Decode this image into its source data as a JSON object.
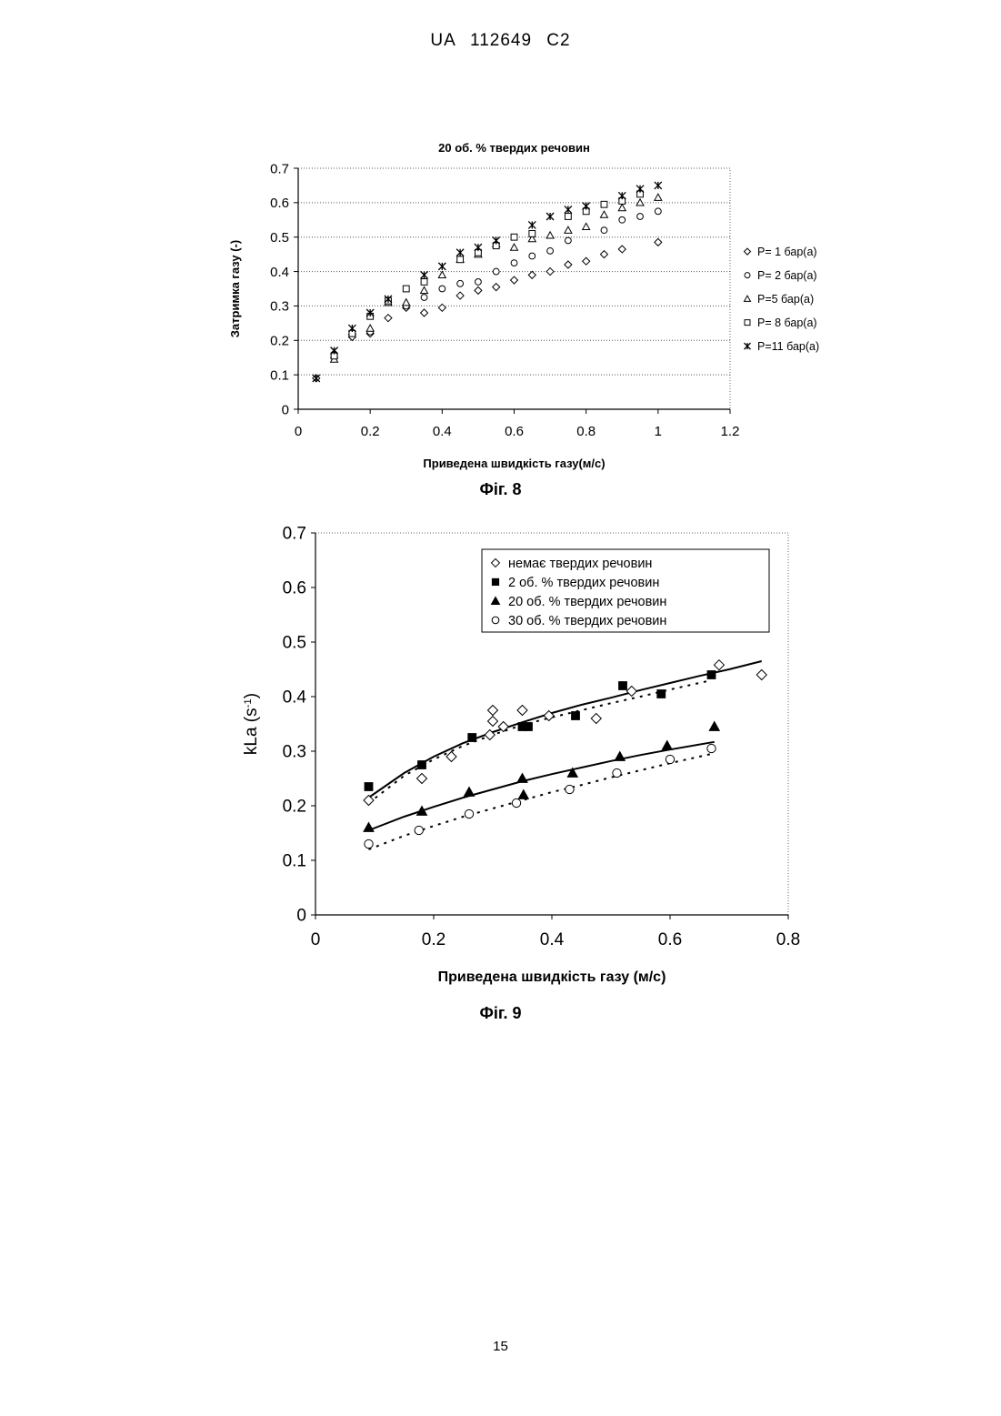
{
  "header": {
    "text": "UA   112649   C2"
  },
  "page_number": "15",
  "chart_data": [
    {
      "type": "scatter",
      "caption": "Фіг. 8",
      "title": "20 об. % твердих речовин",
      "xlabel": "Приведена швидкість газу(м/с)",
      "ylabel": "Затримка газу (-)",
      "xlim": [
        0,
        1.2
      ],
      "ylim": [
        0,
        0.7
      ],
      "xticks": [
        "0",
        "0.2",
        "0.4",
        "0.6",
        "0.8",
        "1",
        "1.2"
      ],
      "yticks": [
        "0",
        "0.1",
        "0.2",
        "0.3",
        "0.4",
        "0.5",
        "0.6",
        "0.7"
      ],
      "grid": "horizontal dotted",
      "legend_position": "right",
      "series": [
        {
          "name": "P= 1 бар(а)",
          "marker": "diamond-open",
          "x": [
            0.05,
            0.1,
            0.15,
            0.2,
            0.25,
            0.3,
            0.35,
            0.4,
            0.45,
            0.5,
            0.55,
            0.6,
            0.65,
            0.7,
            0.75,
            0.8,
            0.85,
            0.9,
            1.0
          ],
          "y": [
            0.09,
            0.15,
            0.21,
            0.22,
            0.265,
            0.295,
            0.28,
            0.295,
            0.33,
            0.345,
            0.355,
            0.375,
            0.39,
            0.4,
            0.42,
            0.43,
            0.45,
            0.465,
            0.485
          ]
        },
        {
          "name": "P= 2 бар(а)",
          "marker": "circle-open",
          "x": [
            0.1,
            0.15,
            0.2,
            0.25,
            0.3,
            0.35,
            0.4,
            0.45,
            0.5,
            0.55,
            0.6,
            0.65,
            0.7,
            0.75,
            0.85,
            0.9,
            0.95,
            1.0
          ],
          "y": [
            0.16,
            0.22,
            0.225,
            0.315,
            0.3,
            0.325,
            0.35,
            0.365,
            0.37,
            0.4,
            0.425,
            0.445,
            0.46,
            0.49,
            0.52,
            0.55,
            0.56,
            0.575
          ]
        },
        {
          "name": "P=5 бар(а)",
          "marker": "triangle-open",
          "x": [
            0.1,
            0.15,
            0.2,
            0.25,
            0.3,
            0.35,
            0.4,
            0.45,
            0.5,
            0.55,
            0.6,
            0.65,
            0.7,
            0.75,
            0.8,
            0.85,
            0.9,
            0.95,
            1.0
          ],
          "y": [
            0.145,
            0.225,
            0.235,
            0.31,
            0.31,
            0.345,
            0.39,
            0.435,
            0.45,
            0.48,
            0.47,
            0.495,
            0.505,
            0.52,
            0.53,
            0.565,
            0.585,
            0.6,
            0.615
          ]
        },
        {
          "name": "P= 8 бар(а)",
          "marker": "square-open",
          "x": [
            0.1,
            0.15,
            0.2,
            0.25,
            0.3,
            0.35,
            0.45,
            0.5,
            0.55,
            0.6,
            0.65,
            0.75,
            0.8,
            0.85,
            0.9,
            0.95
          ],
          "y": [
            0.155,
            0.22,
            0.27,
            0.315,
            0.35,
            0.37,
            0.435,
            0.455,
            0.475,
            0.5,
            0.51,
            0.56,
            0.575,
            0.595,
            0.605,
            0.625
          ]
        },
        {
          "name": "P=11 бар(а)",
          "marker": "star",
          "x": [
            0.05,
            0.1,
            0.15,
            0.2,
            0.25,
            0.35,
            0.4,
            0.45,
            0.5,
            0.55,
            0.65,
            0.7,
            0.75,
            0.8,
            0.9,
            0.95,
            1.0
          ],
          "y": [
            0.09,
            0.17,
            0.235,
            0.28,
            0.32,
            0.39,
            0.415,
            0.455,
            0.47,
            0.49,
            0.535,
            0.56,
            0.58,
            0.59,
            0.62,
            0.64,
            0.65
          ]
        }
      ]
    },
    {
      "type": "scatter",
      "caption": "Фіг. 9",
      "title": "",
      "xlabel": "Приведена швидкість газу (м/с)",
      "ylabel": "kLa (s",
      "ylabel_sup": "-1",
      "ylabel_end": ")",
      "xlim": [
        0,
        0.8
      ],
      "ylim": [
        0,
        0.7
      ],
      "xticks": [
        "0",
        "0.2",
        "0.4",
        "0.6",
        "0.8"
      ],
      "yticks": [
        "0",
        "0.1",
        "0.2",
        "0.3",
        "0.4",
        "0.5",
        "0.6",
        "0.7"
      ],
      "grid": "none",
      "legend_position": "top-right",
      "series": [
        {
          "name": "немає твердих речовин",
          "marker": "diamond-open",
          "x": [
            0.09,
            0.18,
            0.23,
            0.295,
            0.3,
            0.3,
            0.318,
            0.35,
            0.395,
            0.475,
            0.535,
            0.683,
            0.755
          ],
          "y": [
            0.21,
            0.25,
            0.29,
            0.33,
            0.355,
            0.375,
            0.345,
            0.375,
            0.365,
            0.36,
            0.41,
            0.458,
            0.44
          ]
        },
        {
          "name": "2 об. % твердих речовин",
          "marker": "square-filled",
          "x": [
            0.09,
            0.18,
            0.265,
            0.35,
            0.36,
            0.44,
            0.52,
            0.585,
            0.67
          ],
          "y": [
            0.235,
            0.275,
            0.325,
            0.345,
            0.345,
            0.365,
            0.42,
            0.405,
            0.44
          ]
        },
        {
          "name": "20 об. % твердих речовин",
          "marker": "triangle-filled",
          "x": [
            0.09,
            0.18,
            0.26,
            0.35,
            0.352,
            0.435,
            0.515,
            0.595,
            0.675
          ],
          "y": [
            0.16,
            0.19,
            0.225,
            0.25,
            0.22,
            0.26,
            0.29,
            0.31,
            0.345
          ]
        },
        {
          "name": "30 об. % твердих речовин",
          "marker": "circle-open",
          "x": [
            0.09,
            0.175,
            0.26,
            0.34,
            0.43,
            0.51,
            0.6,
            0.67
          ],
          "y": [
            0.13,
            0.155,
            0.185,
            0.205,
            0.23,
            0.26,
            0.285,
            0.305
          ]
        }
      ],
      "trendlines": [
        {
          "style": "solid",
          "x": [
            0.09,
            0.15,
            0.2,
            0.25,
            0.3,
            0.35,
            0.4,
            0.45,
            0.5,
            0.55,
            0.6,
            0.65,
            0.7,
            0.755
          ],
          "y": [
            0.215,
            0.26,
            0.29,
            0.315,
            0.335,
            0.353,
            0.37,
            0.385,
            0.398,
            0.412,
            0.425,
            0.438,
            0.45,
            0.465
          ]
        },
        {
          "style": "dashed",
          "x": [
            0.09,
            0.15,
            0.2,
            0.25,
            0.3,
            0.35,
            0.4,
            0.45,
            0.5,
            0.55,
            0.6,
            0.67
          ],
          "y": [
            0.205,
            0.255,
            0.285,
            0.31,
            0.33,
            0.348,
            0.362,
            0.375,
            0.388,
            0.4,
            0.413,
            0.43
          ]
        },
        {
          "style": "solid",
          "x": [
            0.09,
            0.15,
            0.2,
            0.25,
            0.3,
            0.35,
            0.4,
            0.45,
            0.5,
            0.55,
            0.6,
            0.675
          ],
          "y": [
            0.155,
            0.18,
            0.198,
            0.215,
            0.23,
            0.245,
            0.258,
            0.27,
            0.282,
            0.293,
            0.303,
            0.317
          ]
        },
        {
          "style": "dashed",
          "x": [
            0.09,
            0.15,
            0.2,
            0.25,
            0.3,
            0.35,
            0.4,
            0.45,
            0.5,
            0.55,
            0.6,
            0.67
          ],
          "y": [
            0.12,
            0.145,
            0.163,
            0.18,
            0.195,
            0.21,
            0.225,
            0.238,
            0.252,
            0.265,
            0.278,
            0.295
          ]
        }
      ]
    }
  ]
}
